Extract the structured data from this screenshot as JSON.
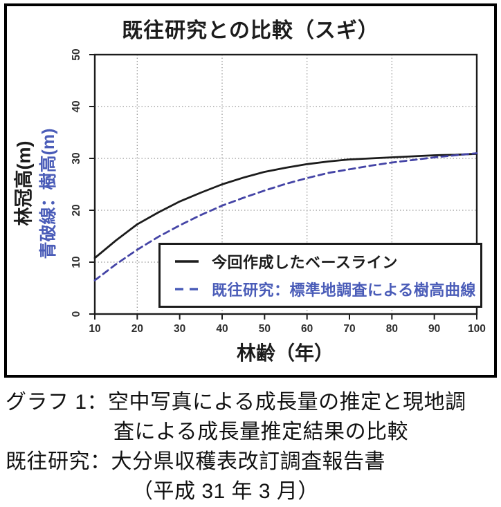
{
  "chart_data": {
    "type": "line",
    "title": "既往研究との比較（スギ）",
    "xlabel": "林齢（年）",
    "ylabel": "林冠高(m)",
    "ylabel_secondary": "青破線：樹高(m)",
    "xlim": [
      10,
      100
    ],
    "ylim": [
      0,
      50
    ],
    "xticks": [
      10,
      20,
      30,
      40,
      50,
      60,
      70,
      80,
      90,
      100
    ],
    "yticks": [
      0,
      10,
      20,
      30,
      40,
      50
    ],
    "grid": {
      "style": "dotted",
      "x_values": [
        20,
        40,
        60,
        80
      ],
      "y_values": [
        10,
        20,
        30,
        40
      ]
    },
    "x": [
      10,
      15,
      20,
      25,
      30,
      35,
      40,
      45,
      50,
      55,
      60,
      65,
      70,
      75,
      80,
      85,
      90,
      95,
      100
    ],
    "series": [
      {
        "name": "今回作成したベースライン",
        "line_style": "solid",
        "color": "#1c1c1c",
        "values": [
          10.8,
          14.2,
          17.3,
          19.6,
          21.7,
          23.4,
          25.0,
          26.3,
          27.4,
          28.2,
          28.9,
          29.4,
          29.8,
          30.0,
          30.2,
          30.4,
          30.6,
          30.7,
          30.9
        ]
      },
      {
        "name": "既往研究：標準地調査による樹高曲線",
        "line_style": "dashed",
        "color": "#4444a6",
        "values": [
          6.5,
          9.6,
          12.4,
          14.9,
          17.1,
          19.1,
          20.9,
          22.4,
          23.8,
          25.1,
          26.2,
          27.2,
          27.9,
          28.6,
          29.2,
          29.7,
          30.2,
          30.6,
          31.0
        ]
      }
    ],
    "legend_position": "inside-bottom-right"
  },
  "caption": {
    "lines": [
      "グラフ 1：空中写真による成長量の推定と現地調",
      "査による成長量推定結果の比較",
      "既往研究：大分県収穫表改訂調査報告書",
      "（平成 31 年 3 月）"
    ]
  },
  "colors": {
    "line_black": "#1c1c1c",
    "line_blue": "#4444a6",
    "text_blue": "#4a5cb8",
    "grid": "#999999",
    "tick_label": "#2e2e2e",
    "border": "#000000"
  }
}
